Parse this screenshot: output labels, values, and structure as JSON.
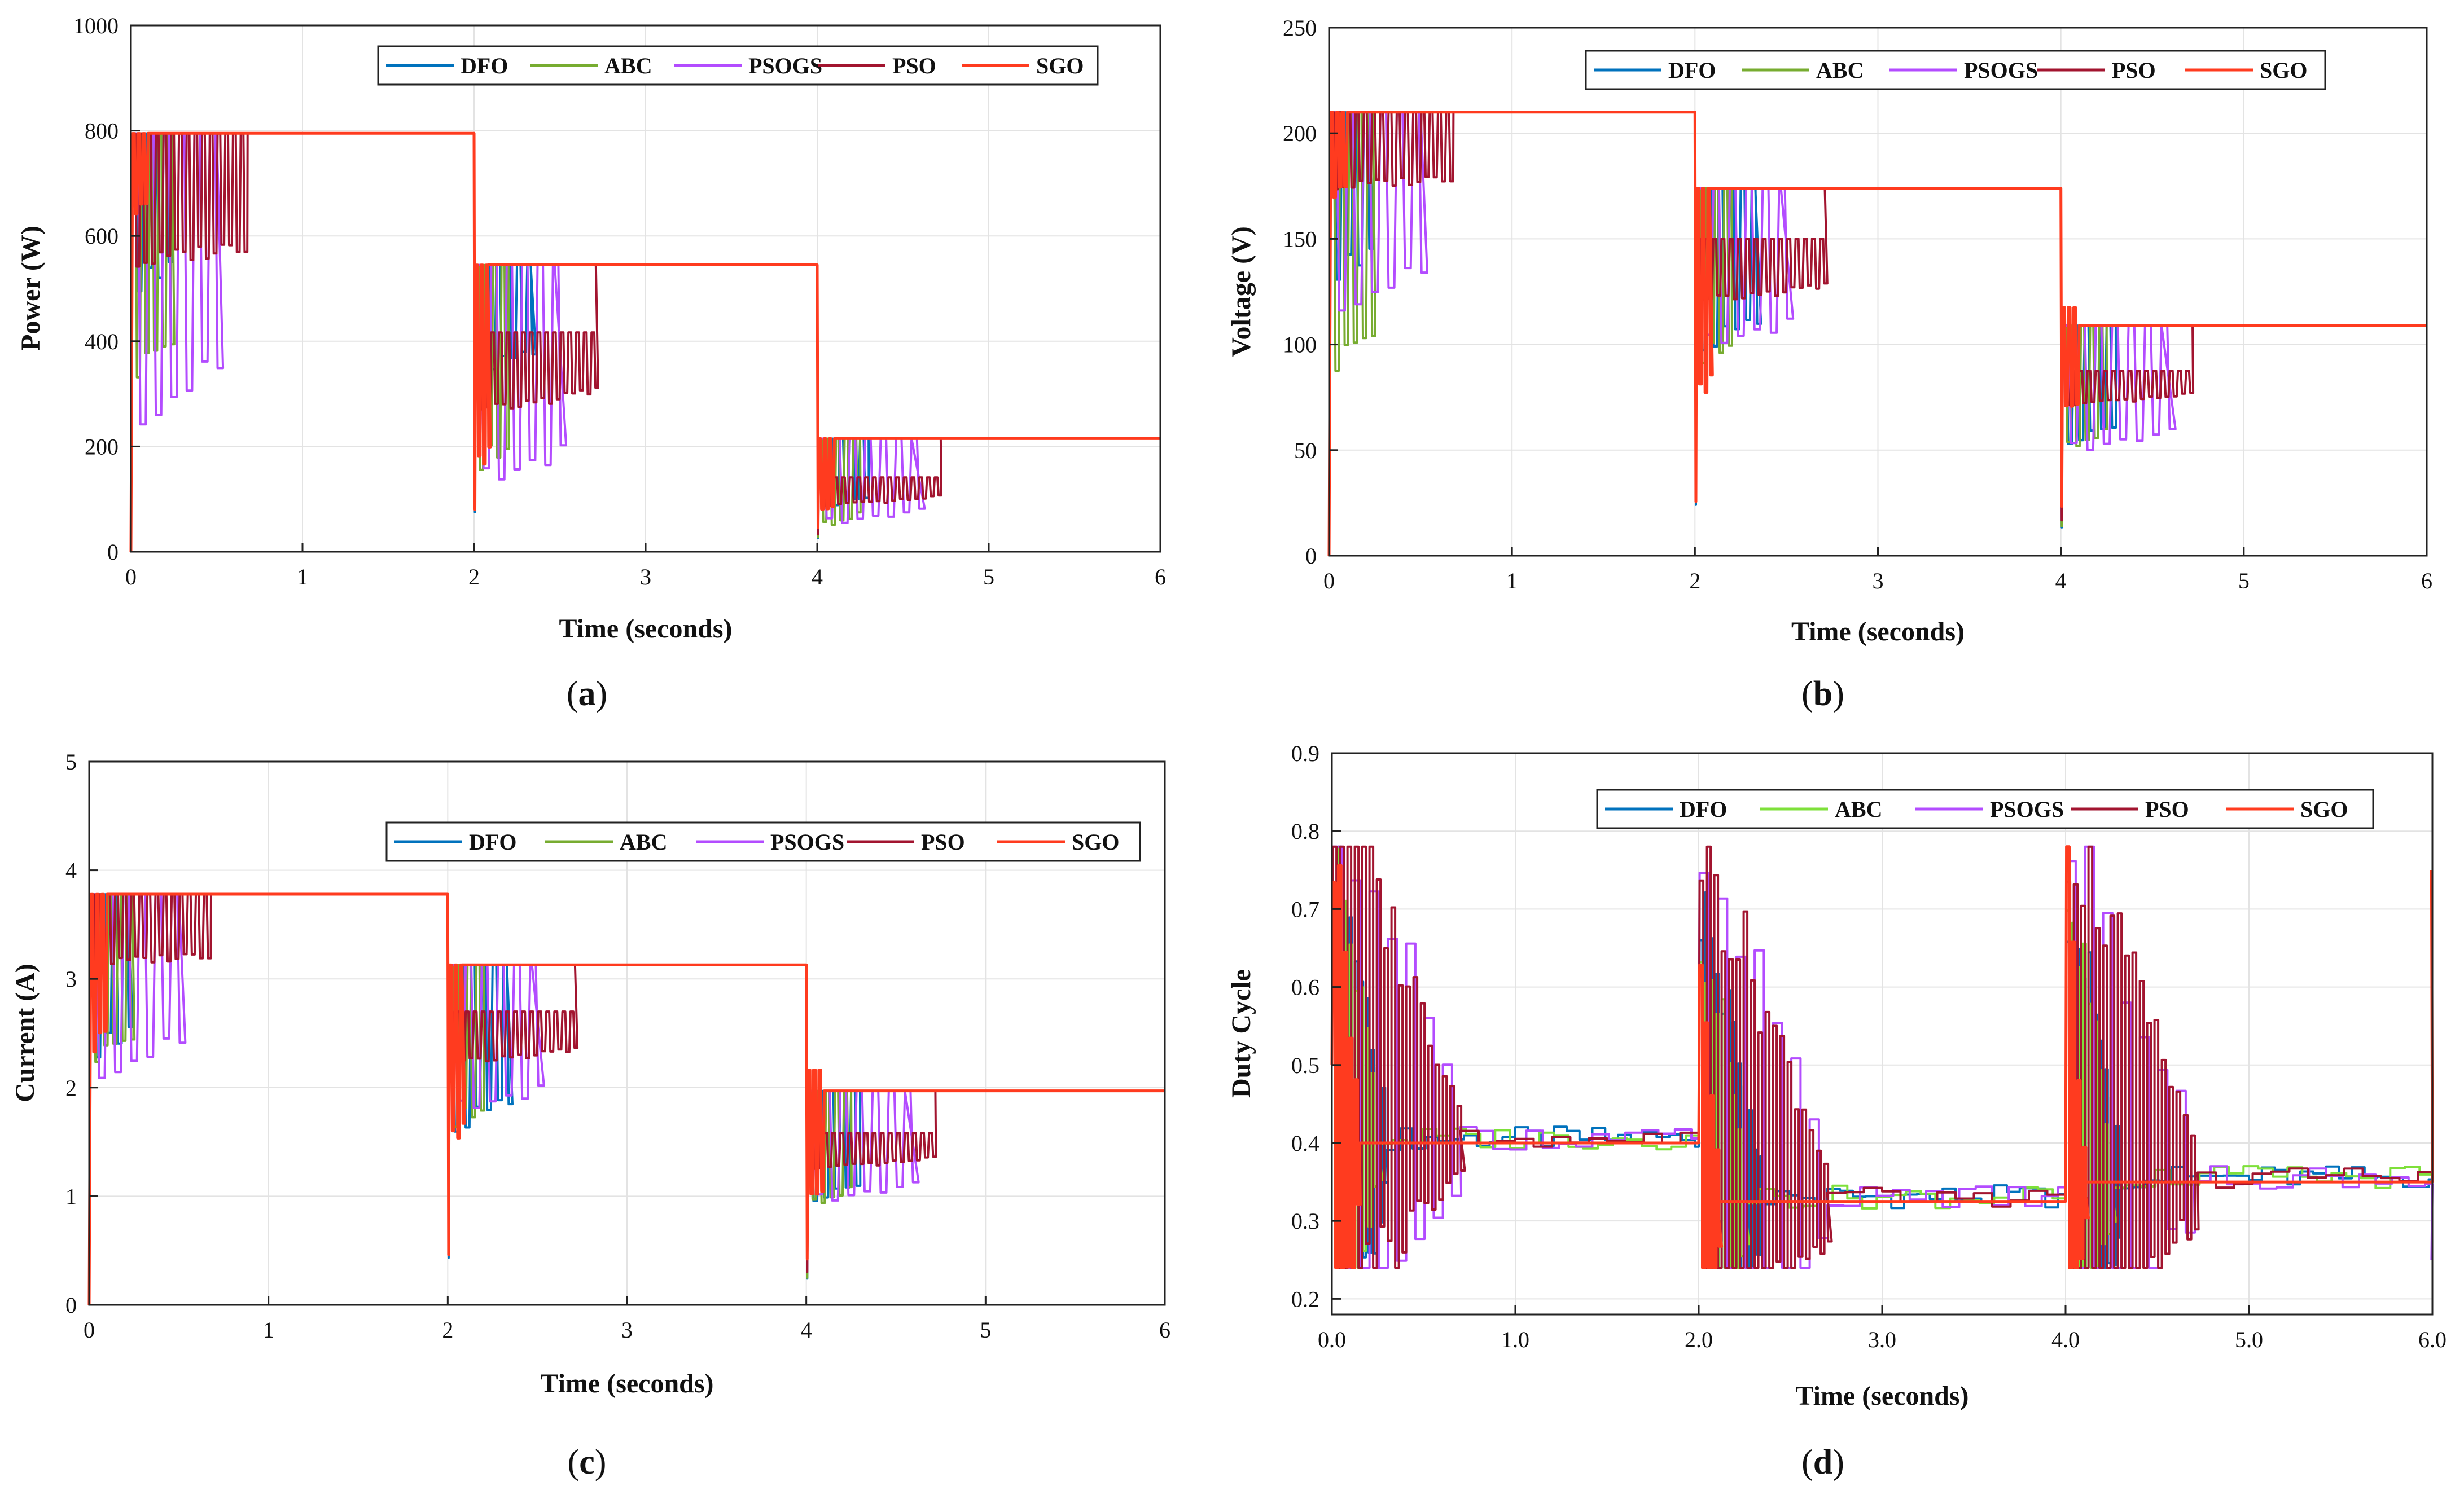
{
  "figure": {
    "panels": [
      "a",
      "b",
      "c",
      "d"
    ]
  },
  "chart_data": [
    {
      "id": "a",
      "caption_letter": "a",
      "type": "line",
      "xlabel": "Time (seconds)",
      "ylabel": "Power (W)",
      "xlim": [
        0,
        6
      ],
      "ylim": [
        0,
        1000
      ],
      "xticks": [
        0,
        1,
        2,
        3,
        4,
        5,
        6
      ],
      "yticks": [
        0,
        200,
        400,
        600,
        800,
        1000
      ],
      "grid": true,
      "legend": "top-right, horizontal",
      "levels": [
        795,
        545,
        215
      ],
      "step_times": [
        0,
        2,
        4
      ],
      "series": [
        {
          "name": "DFO",
          "color": "#0072BD",
          "settle": [
            0.22,
            2.33,
            4.3
          ],
          "low": [
            0.62,
            0.62,
            0.35
          ],
          "high": [
            1.0,
            1.0,
            1.0
          ],
          "period": 0.06
        },
        {
          "name": "ABC",
          "color": "#77AC30",
          "settle": [
            0.24,
            2.2,
            4.25
          ],
          "low": [
            0.4,
            0.25,
            0.2
          ],
          "high": [
            1.0,
            1.0,
            1.0
          ],
          "period": 0.05
        },
        {
          "name": "PSOGS",
          "color": "#B34CFF",
          "settle": [
            0.5,
            2.47,
            4.55
          ],
          "low": [
            0.3,
            0.2,
            0.2
          ],
          "high": [
            1.0,
            1.0,
            1.0
          ],
          "period": 0.09
        },
        {
          "name": "PSO",
          "color": "#A2142F",
          "settle": [
            0.68,
            2.71,
            4.72
          ],
          "low": [
            0.67,
            0.47,
            0.38
          ],
          "high": [
            1.0,
            0.76,
            0.65
          ],
          "period": 0.045
        },
        {
          "name": "SGO",
          "color": "#FF3B1F",
          "settle": [
            0.1,
            2.08,
            4.1
          ],
          "low": [
            0.8,
            0.25,
            0.3
          ],
          "high": [
            1.0,
            1.0,
            1.0
          ],
          "period": 0.03
        }
      ]
    },
    {
      "id": "b",
      "caption_letter": "b",
      "type": "line",
      "xlabel": "Time (seconds)",
      "ylabel": "Voltage (V)",
      "xlim": [
        0,
        6
      ],
      "ylim": [
        0,
        250
      ],
      "xticks": [
        0,
        1,
        2,
        3,
        4,
        5,
        6
      ],
      "yticks": [
        0,
        50,
        100,
        150,
        200,
        250
      ],
      "grid": true,
      "legend": "top-right, horizontal",
      "levels": [
        210,
        174,
        109
      ],
      "step_times": [
        0,
        2,
        4
      ],
      "series": [
        {
          "name": "DFO",
          "color": "#0072BD",
          "settle": [
            0.22,
            2.33,
            4.3
          ],
          "low": [
            0.62,
            0.55,
            0.45
          ],
          "high": [
            1.0,
            1.0,
            1.0
          ],
          "period": 0.06
        },
        {
          "name": "ABC",
          "color": "#77AC30",
          "settle": [
            0.24,
            2.2,
            4.25
          ],
          "low": [
            0.4,
            0.5,
            0.45
          ],
          "high": [
            1.0,
            1.0,
            1.0
          ],
          "period": 0.05
        },
        {
          "name": "PSOGS",
          "color": "#B34CFF",
          "settle": [
            0.5,
            2.47,
            4.55
          ],
          "low": [
            0.55,
            0.55,
            0.42
          ],
          "high": [
            1.0,
            1.0,
            1.0
          ],
          "period": 0.09
        },
        {
          "name": "PSO",
          "color": "#A2142F",
          "settle": [
            0.68,
            2.71,
            4.72
          ],
          "low": [
            0.82,
            0.68,
            0.64
          ],
          "high": [
            1.0,
            0.86,
            0.8
          ],
          "period": 0.045
        },
        {
          "name": "SGO",
          "color": "#FF3B1F",
          "settle": [
            0.1,
            2.08,
            4.1
          ],
          "low": [
            0.8,
            0.4,
            0.6
          ],
          "high": [
            1.0,
            1.0,
            1.08
          ],
          "period": 0.03
        }
      ]
    },
    {
      "id": "c",
      "caption_letter": "c",
      "type": "line",
      "xlabel": "Time (seconds)",
      "ylabel": "Current (A)",
      "xlim": [
        0,
        6
      ],
      "ylim": [
        0,
        5
      ],
      "xticks": [
        0,
        1,
        2,
        3,
        4,
        5,
        6
      ],
      "yticks": [
        0,
        1,
        2,
        3,
        4,
        5
      ],
      "grid": true,
      "legend": "top-right, horizontal",
      "levels": [
        3.78,
        3.13,
        1.97
      ],
      "step_times": [
        0,
        2,
        4
      ],
      "series": [
        {
          "name": "DFO",
          "color": "#0072BD",
          "settle": [
            0.22,
            2.33,
            4.3
          ],
          "low": [
            0.6,
            0.5,
            0.45
          ],
          "high": [
            1.0,
            1.0,
            1.0
          ],
          "period": 0.06
        },
        {
          "name": "ABC",
          "color": "#77AC30",
          "settle": [
            0.24,
            2.2,
            4.25
          ],
          "low": [
            0.58,
            0.5,
            0.45
          ],
          "high": [
            1.0,
            1.0,
            1.0
          ],
          "period": 0.05
        },
        {
          "name": "PSOGS",
          "color": "#B34CFF",
          "settle": [
            0.5,
            2.47,
            4.55
          ],
          "low": [
            0.55,
            0.55,
            0.45
          ],
          "high": [
            1.0,
            1.0,
            1.0
          ],
          "period": 0.09
        },
        {
          "name": "PSO",
          "color": "#A2142F",
          "settle": [
            0.68,
            2.71,
            4.72
          ],
          "low": [
            0.82,
            0.7,
            0.62
          ],
          "high": [
            1.0,
            0.86,
            0.8
          ],
          "period": 0.045
        },
        {
          "name": "SGO",
          "color": "#FF3B1F",
          "settle": [
            0.1,
            2.08,
            4.1
          ],
          "low": [
            0.6,
            0.45,
            0.45
          ],
          "high": [
            1.0,
            1.0,
            1.1
          ],
          "period": 0.03
        }
      ]
    },
    {
      "id": "d",
      "caption_letter": "d",
      "type": "line",
      "xlabel": "Time (seconds)",
      "ylabel": "Duty Cycle",
      "xlim": [
        0,
        6
      ],
      "ylim": [
        0.18,
        0.9
      ],
      "xticks": [
        0,
        1,
        2,
        3,
        4,
        5,
        6
      ],
      "yticks": [
        0.2,
        0.3,
        0.4,
        0.5,
        0.6,
        0.7,
        0.8,
        0.9
      ],
      "grid": true,
      "legend": "top-right, horizontal",
      "levels": [
        0.4,
        0.325,
        0.35
      ],
      "step_times": [
        0,
        2,
        4
      ],
      "series": [
        {
          "name": "DFO",
          "color": "#0072BD",
          "settle": [
            0.3,
            2.35,
            4.3
          ],
          "ripple": 0.03
        },
        {
          "name": "ABC",
          "color": "#7EE03A",
          "settle": [
            0.25,
            2.25,
            4.25
          ],
          "ripple": 0.03
        },
        {
          "name": "PSOGS",
          "color": "#B34CFF",
          "settle": [
            0.7,
            2.7,
            4.7
          ],
          "ripple": 0.03
        },
        {
          "name": "PSO",
          "color": "#A2142F",
          "settle": [
            0.7,
            2.7,
            4.72
          ],
          "ripple": 0.025
        },
        {
          "name": "SGO",
          "color": "#FF3B1F",
          "settle": [
            0.15,
            2.1,
            4.1
          ],
          "ripple": 0.0
        }
      ]
    }
  ]
}
